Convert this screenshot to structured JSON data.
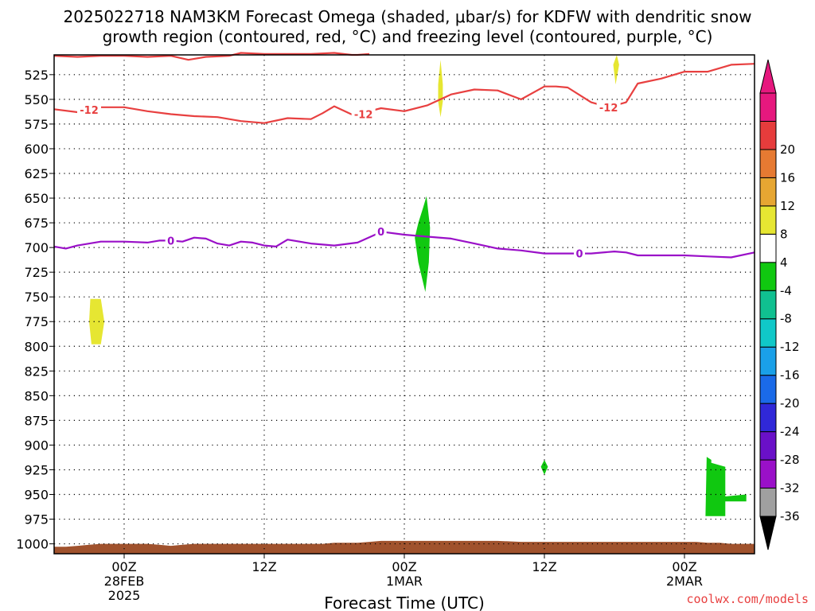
{
  "chart_data": {
    "type": "heatmap",
    "title_line1": "2025022718 NAM3KM Forecast Omega (shaded, μbar/s) for KDFW with dendritic snow",
    "title_line2": "growth region (contoured, red, °C) and freezing level (contoured, purple, °C)",
    "xlabel": "Forecast Time (UTC)",
    "credit": "coolwx.com/models",
    "x_unit": "hours_from_2025-02-27T18Z",
    "xlim": [
      0,
      60
    ],
    "ylim": [
      1010,
      505
    ],
    "y_ticks": [
      525,
      550,
      575,
      600,
      625,
      650,
      675,
      700,
      725,
      750,
      775,
      800,
      825,
      850,
      875,
      900,
      925,
      950,
      975,
      1000
    ],
    "x_ticks": [
      {
        "x": 6,
        "lines": [
          "00Z",
          "28FEB",
          "2025"
        ]
      },
      {
        "x": 18,
        "lines": [
          "12Z"
        ]
      },
      {
        "x": 30,
        "lines": [
          "00Z",
          "1MAR"
        ]
      },
      {
        "x": 42,
        "lines": [
          "12Z"
        ]
      },
      {
        "x": 54,
        "lines": [
          "00Z",
          "2MAR"
        ]
      }
    ],
    "grid": true,
    "colorbar": {
      "levels": [
        -36,
        -32,
        -28,
        -24,
        -20,
        -16,
        -12,
        -8,
        -4,
        4,
        8,
        12,
        16,
        20
      ],
      "colors": [
        "#a0a0a0",
        "#9a10c8",
        "#6a10c8",
        "#3028d8",
        "#1a6ae8",
        "#1aa0e8",
        "#10c8c8",
        "#10c090",
        "#10c810",
        "#ffffff",
        "#e6e632",
        "#e6a632",
        "#e67a32",
        "#e63c3c",
        "#e6187e"
      ],
      "under_color": "#000000",
      "over_color": "#e6187e"
    },
    "series": [
      {
        "color": "#e84040",
        "label": "-12",
        "x": [
          0,
          2,
          4,
          6,
          8,
          10,
          12,
          14,
          16,
          18,
          20,
          22,
          23,
          24,
          26,
          27,
          28,
          30,
          32,
          34,
          36,
          38,
          40,
          42,
          43,
          44,
          46,
          47.5,
          49,
          50,
          52,
          54,
          56,
          58,
          60
        ],
        "y": [
          560,
          563,
          558,
          558,
          562,
          565,
          567,
          568,
          572,
          574,
          569,
          570,
          564,
          557,
          568,
          562,
          559,
          562,
          556,
          545,
          540,
          541,
          550,
          537,
          537,
          538,
          553,
          558,
          553,
          534,
          529,
          522,
          522,
          515,
          514
        ],
        "labels_at": [
          3,
          26.5,
          47.5
        ]
      },
      {
        "color": "#e84040",
        "label": "",
        "x": [
          0,
          2,
          4,
          6,
          8,
          10,
          11.5,
          13,
          15,
          16,
          18,
          20,
          22,
          24,
          25.5,
          26,
          27
        ],
        "y": [
          506,
          507,
          506,
          506,
          507,
          506,
          510,
          507,
          506,
          503,
          504,
          504,
          504,
          503,
          505,
          505,
          504
        ],
        "labels_at": []
      },
      {
        "color": "#9a10c8",
        "label": "0",
        "x": [
          0,
          1,
          2,
          4,
          6,
          8,
          9,
          10,
          11,
          12,
          13,
          14,
          15,
          16,
          17,
          18,
          19,
          20,
          22,
          24,
          26,
          27.5,
          28,
          30,
          32,
          34,
          36,
          38,
          40,
          42,
          44,
          46,
          48,
          49,
          50,
          52,
          54,
          56,
          58,
          60
        ],
        "y": [
          699,
          701,
          698,
          694,
          694,
          695,
          693,
          693,
          694,
          690,
          691,
          696,
          698,
          694,
          695,
          698,
          699,
          692,
          696,
          698,
          695,
          687,
          684,
          687,
          689,
          691,
          696,
          701,
          703,
          706,
          706,
          706,
          704,
          705,
          708,
          708,
          708,
          709,
          710,
          705
        ],
        "labels_at": [
          10,
          28,
          45
        ]
      }
    ],
    "regions": [
      {
        "value": 6,
        "color": "#e6e632",
        "points": [
          [
            3.1,
            752
          ],
          [
            4.0,
            752
          ],
          [
            4.3,
            775
          ],
          [
            4.0,
            798
          ],
          [
            3.2,
            798
          ],
          [
            3.0,
            775
          ]
        ]
      },
      {
        "value": 6,
        "color": "#e6e632",
        "points": [
          [
            33.1,
            510
          ],
          [
            33.3,
            535
          ],
          [
            33.3,
            552
          ],
          [
            33.1,
            568
          ],
          [
            32.9,
            552
          ],
          [
            32.9,
            535
          ]
        ]
      },
      {
        "value": 6,
        "color": "#e6e632",
        "points": [
          [
            48.2,
            505
          ],
          [
            48.4,
            515
          ],
          [
            48.1,
            535
          ],
          [
            47.9,
            515
          ]
        ]
      },
      {
        "value": -6,
        "color": "#10c810",
        "points": [
          [
            31.9,
            648
          ],
          [
            32.2,
            680
          ],
          [
            32.1,
            715
          ],
          [
            31.8,
            745
          ],
          [
            31.2,
            715
          ],
          [
            30.9,
            690
          ],
          [
            31.2,
            675
          ],
          [
            31.6,
            660
          ]
        ]
      },
      {
        "value": -6,
        "color": "#10c810",
        "points": [
          [
            42.0,
            915
          ],
          [
            42.3,
            922
          ],
          [
            42.0,
            930
          ],
          [
            41.7,
            922
          ]
        ]
      },
      {
        "value": -6,
        "color": "#10c810",
        "points": [
          [
            55.9,
            912
          ],
          [
            56.3,
            915
          ],
          [
            56.3,
            918
          ],
          [
            57.5,
            922
          ],
          [
            57.5,
            952
          ],
          [
            59.3,
            950
          ],
          [
            59.3,
            957
          ],
          [
            57.5,
            957
          ],
          [
            57.5,
            972
          ],
          [
            55.8,
            972
          ]
        ]
      }
    ],
    "terrain": {
      "color": "#a0522d",
      "x": [
        0,
        1,
        2,
        3,
        4,
        5,
        6,
        7,
        8,
        9,
        10,
        11,
        12,
        14,
        16,
        18,
        20,
        22,
        23,
        24,
        26,
        27,
        28,
        30,
        32,
        34,
        36,
        38,
        40,
        42,
        44,
        46,
        48,
        50,
        52,
        54,
        55,
        56,
        57,
        58,
        60
      ],
      "y": [
        1003,
        1003,
        1002,
        1001,
        1000,
        1000,
        1000,
        1000,
        1000,
        1001,
        1002,
        1001,
        1000,
        1000,
        1000,
        1000,
        1000,
        1000,
        1000,
        999,
        999,
        998,
        997,
        997,
        997,
        997,
        997,
        997,
        998,
        998,
        998,
        998,
        998,
        998,
        998,
        998,
        998,
        999,
        999,
        1000,
        1000
      ]
    }
  }
}
